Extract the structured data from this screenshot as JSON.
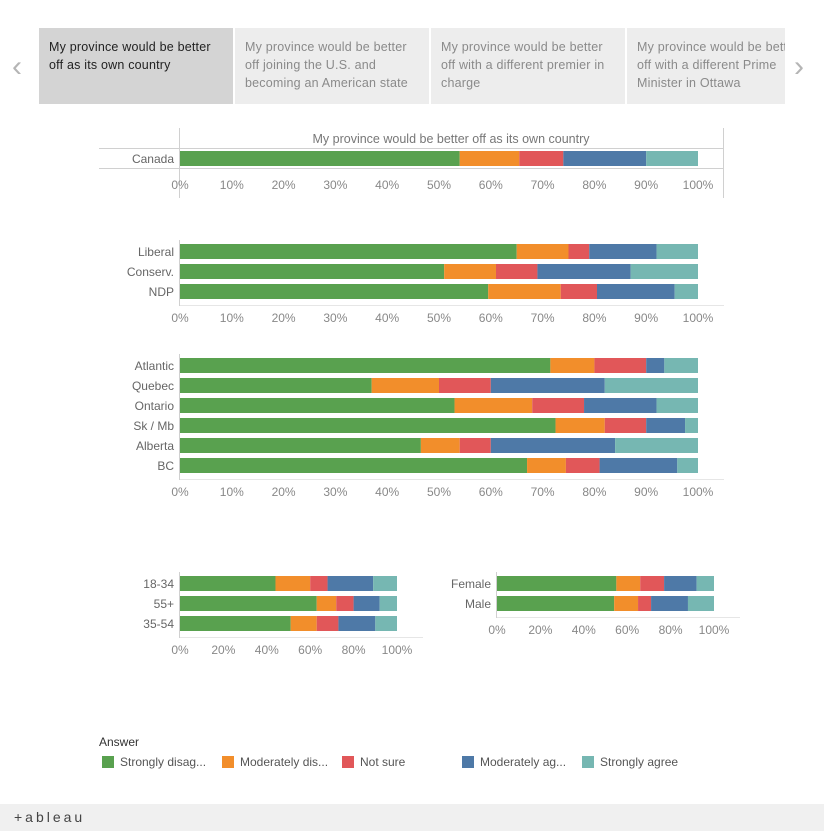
{
  "tabs": [
    {
      "label": "My province would be better off as its own country",
      "active": true
    },
    {
      "label": "My province would be better off joining the U.S. and becoming an American state",
      "active": false
    },
    {
      "label": "My province would be better off with a different premier in charge",
      "active": false
    },
    {
      "label": "My province would be better off with a different Prime Minister in Ottawa",
      "active": false
    }
  ],
  "nav": {
    "prev": "‹",
    "next": "›"
  },
  "colors": [
    "#59a14f",
    "#f28e2b",
    "#e15759",
    "#4e79a7",
    "#76b7b2"
  ],
  "legend": {
    "title": "Answer",
    "items": [
      "Strongly disag...",
      "Moderately dis...",
      "Not sure",
      "Moderately ag...",
      "Strongly agree"
    ]
  },
  "brand": "+ableau",
  "chart_data": [
    {
      "type": "bar",
      "orientation": "horizontal",
      "stacked": true,
      "title": "My province would be better off as its own country",
      "categories": [
        "Canada"
      ],
      "series": [
        {
          "name": "Strongly disag...",
          "values": [
            54
          ]
        },
        {
          "name": "Moderately dis...",
          "values": [
            11.5
          ]
        },
        {
          "name": "Not sure",
          "values": [
            8.5
          ]
        },
        {
          "name": "Moderately ag...",
          "values": [
            16
          ]
        },
        {
          "name": "Strongly agree",
          "values": [
            10
          ]
        }
      ],
      "xlim": [
        0,
        100
      ],
      "xticks": [
        "0%",
        "10%",
        "20%",
        "30%",
        "40%",
        "50%",
        "60%",
        "70%",
        "80%",
        "90%",
        "100%"
      ]
    },
    {
      "type": "bar",
      "orientation": "horizontal",
      "stacked": true,
      "categories": [
        "Liberal",
        "Conserv.",
        "NDP"
      ],
      "series": [
        {
          "name": "Strongly disag...",
          "values": [
            65,
            51,
            59.5
          ]
        },
        {
          "name": "Moderately dis...",
          "values": [
            10,
            10,
            14
          ]
        },
        {
          "name": "Not sure",
          "values": [
            4,
            8,
            7
          ]
        },
        {
          "name": "Moderately ag...",
          "values": [
            13,
            18,
            15
          ]
        },
        {
          "name": "Strongly agree",
          "values": [
            8,
            13,
            4.5
          ]
        }
      ],
      "xlim": [
        0,
        100
      ],
      "xticks": [
        "0%",
        "10%",
        "20%",
        "30%",
        "40%",
        "50%",
        "60%",
        "70%",
        "80%",
        "90%",
        "100%"
      ]
    },
    {
      "type": "bar",
      "orientation": "horizontal",
      "stacked": true,
      "categories": [
        "Atlantic",
        "Quebec",
        "Ontario",
        "Sk / Mb",
        "Alberta",
        "BC"
      ],
      "series": [
        {
          "name": "Strongly disag...",
          "values": [
            71.5,
            37,
            53,
            72.5,
            46.5,
            67
          ]
        },
        {
          "name": "Moderately dis...",
          "values": [
            8.5,
            13,
            15,
            9.5,
            7.5,
            7.5
          ]
        },
        {
          "name": "Not sure",
          "values": [
            10,
            10,
            10,
            8,
            6,
            6.5
          ]
        },
        {
          "name": "Moderately ag...",
          "values": [
            3.5,
            22,
            14,
            7.5,
            24,
            15
          ]
        },
        {
          "name": "Strongly agree",
          "values": [
            6.5,
            18,
            8,
            2.5,
            16,
            4
          ]
        }
      ],
      "xlim": [
        0,
        100
      ],
      "xticks": [
        "0%",
        "10%",
        "20%",
        "30%",
        "40%",
        "50%",
        "60%",
        "70%",
        "80%",
        "90%",
        "100%"
      ]
    },
    {
      "type": "bar",
      "orientation": "horizontal",
      "stacked": true,
      "categories": [
        "18-34",
        "55+",
        "35-54"
      ],
      "series": [
        {
          "name": "Strongly disag...",
          "values": [
            44,
            63,
            51
          ]
        },
        {
          "name": "Moderately dis...",
          "values": [
            16,
            9,
            12
          ]
        },
        {
          "name": "Not sure",
          "values": [
            8,
            8,
            10
          ]
        },
        {
          "name": "Moderately ag...",
          "values": [
            21,
            12,
            17
          ]
        },
        {
          "name": "Strongly agree",
          "values": [
            11,
            8,
            10
          ]
        }
      ],
      "xlim": [
        0,
        100
      ],
      "xticks": [
        "0%",
        "20%",
        "40%",
        "60%",
        "80%",
        "100%"
      ]
    },
    {
      "type": "bar",
      "orientation": "horizontal",
      "stacked": true,
      "categories": [
        "Female",
        "Male"
      ],
      "series": [
        {
          "name": "Strongly disag...",
          "values": [
            55,
            54
          ]
        },
        {
          "name": "Moderately dis...",
          "values": [
            11,
            11
          ]
        },
        {
          "name": "Not sure",
          "values": [
            11,
            6
          ]
        },
        {
          "name": "Moderately ag...",
          "values": [
            15,
            17
          ]
        },
        {
          "name": "Strongly agree",
          "values": [
            8,
            12
          ]
        }
      ],
      "xlim": [
        0,
        100
      ],
      "xticks": [
        "0%",
        "20%",
        "40%",
        "60%",
        "80%",
        "100%"
      ]
    }
  ]
}
